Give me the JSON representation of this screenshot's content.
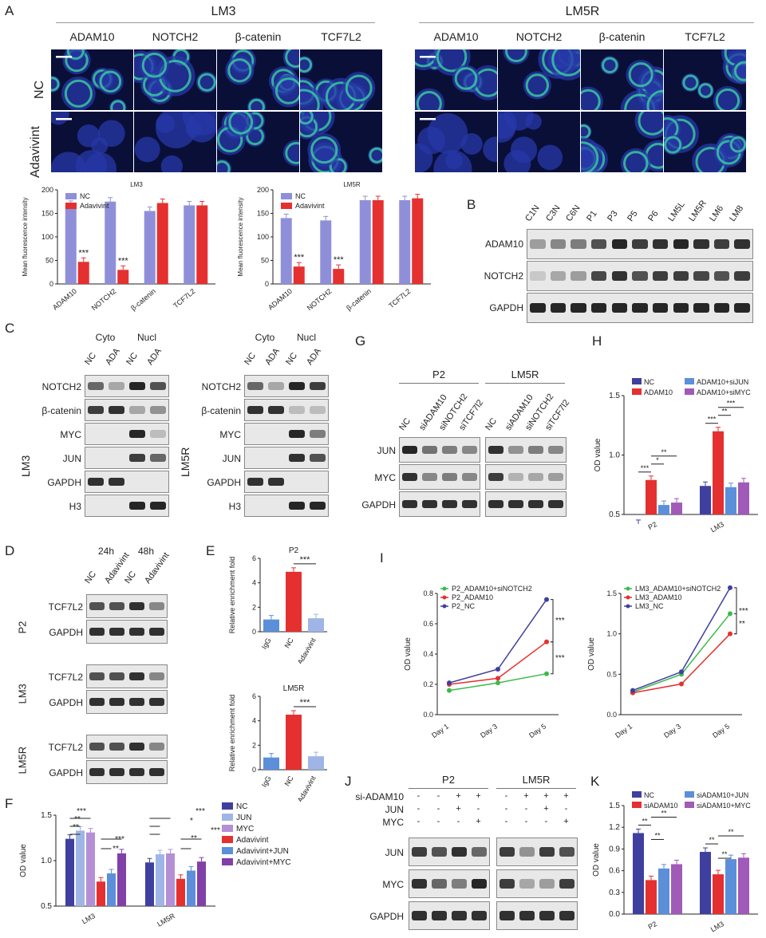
{
  "panels": {
    "A": "A",
    "B": "B",
    "C": "C",
    "D": "D",
    "E": "E",
    "F": "F",
    "G": "G",
    "H": "H",
    "I": "I",
    "J": "J",
    "K": "K"
  },
  "panel_a": {
    "group_left": "LM3",
    "group_right": "LM5R",
    "markers": [
      "ADAM10",
      "NOTCH2",
      "β-catenin",
      "TCF7L2"
    ],
    "rows": [
      "NC",
      "Adavivint"
    ]
  },
  "colors": {
    "nc": "#8f8fd9",
    "adavivint": "#e53030",
    "dark_blue": "#3f3f9f",
    "light_blue": "#9fb5e6",
    "purple": "#a05ab8",
    "mid_blue": "#5b8fd9",
    "green": "#3cba4a"
  },
  "panel_b": {
    "lanes": [
      "C1N",
      "C3N",
      "C6N",
      "P1",
      "P3",
      "P5",
      "P6",
      "LM5L",
      "LM5R",
      "LM6",
      "LM8"
    ],
    "rows": [
      "ADAM10",
      "NOTCH2",
      "GAPDH"
    ]
  },
  "panel_c": {
    "left_cell": "LM3",
    "right_cell": "LM5R",
    "fractions": [
      "Cyto",
      "Nucl"
    ],
    "lanes": [
      "NC",
      "ADA",
      "NC",
      "ADA"
    ],
    "rows": [
      "NOTCH2",
      "β-catenin",
      "MYC",
      "JUN",
      "GAPDH",
      "H3"
    ]
  },
  "panel_d": {
    "times": [
      "24h",
      "48h"
    ],
    "lanes": [
      "NC",
      "Adavivint",
      "NC",
      "Adavivint"
    ],
    "groups": [
      {
        "cell": "P2",
        "rows": [
          "TCF7L2",
          "GAPDH"
        ]
      },
      {
        "cell": "LM3",
        "rows": [
          "TCF7L2",
          "GAPDH"
        ]
      },
      {
        "cell": "LM5R",
        "rows": [
          "TCF7L2",
          "GAPDH"
        ]
      }
    ]
  },
  "panel_g": {
    "groups": [
      "P2",
      "LM5R"
    ],
    "lanes": [
      "NC",
      "siADAM10",
      "siNOTCH2",
      "siTCF7l2",
      "NC",
      "siADAM10",
      "siNOTCH2",
      "siTCF7l2"
    ],
    "rows": [
      "JUN",
      "MYC",
      "GAPDH"
    ]
  },
  "panel_j": {
    "groups": [
      "P2",
      "LM5R"
    ],
    "conditions": [
      {
        "name": "si-ADAM10",
        "marks": [
          "-",
          "-",
          "+",
          "+",
          "-",
          "+",
          "+",
          "+"
        ]
      },
      {
        "name": "JUN",
        "marks": [
          "-",
          "-",
          "+",
          "-",
          "-",
          "-",
          "+",
          "-"
        ]
      },
      {
        "name": "MYC",
        "marks": [
          "-",
          "-",
          "-",
          "+",
          "-",
          "-",
          "-",
          "+"
        ]
      }
    ],
    "rows": [
      "JUN",
      "MYC",
      "GAPDH"
    ]
  },
  "chart_data": [
    {
      "id": "A-LM3",
      "type": "bar",
      "title": "LM3",
      "ylabel": "Mean fluorescence intensity",
      "ylim": [
        0,
        200
      ],
      "yticks": [
        0,
        50,
        100,
        150,
        200
      ],
      "categories": [
        "ADAM10",
        "NOTCH2",
        "β-catenin",
        "TCF7L2"
      ],
      "series": [
        {
          "name": "NC",
          "values": [
            168,
            175,
            155,
            167
          ]
        },
        {
          "name": "Adavivint",
          "values": [
            47,
            30,
            172,
            167
          ]
        }
      ],
      "annotations": [
        "***",
        "***"
      ]
    },
    {
      "id": "A-LM5R",
      "type": "bar",
      "title": "LM5R",
      "ylabel": "Mean fluorescence intensity",
      "ylim": [
        0,
        200
      ],
      "yticks": [
        0,
        50,
        100,
        150,
        200
      ],
      "categories": [
        "ADAM10",
        "NOTCH2",
        "β-catenin",
        "TCF7L2"
      ],
      "series": [
        {
          "name": "NC",
          "values": [
            140,
            135,
            178,
            178
          ]
        },
        {
          "name": "Adavivint",
          "values": [
            37,
            32,
            178,
            182
          ]
        }
      ],
      "annotations": [
        "***",
        "***"
      ]
    },
    {
      "id": "E-P2",
      "type": "bar",
      "title": "P2",
      "ylabel": "Relative enrichment fold",
      "ylim": [
        0,
        6
      ],
      "yticks": [
        0,
        2,
        4,
        6
      ],
      "categories": [
        "IgG",
        "NC",
        "Adavivint"
      ],
      "values": [
        1.0,
        4.9,
        1.1
      ],
      "annotations": [
        "***"
      ]
    },
    {
      "id": "E-LM5R",
      "type": "bar",
      "title": "LM5R",
      "ylabel": "Relative enrichment fold",
      "ylim": [
        0,
        6
      ],
      "yticks": [
        0,
        2,
        4,
        6
      ],
      "categories": [
        "IgG",
        "NC",
        "Adavivint"
      ],
      "values": [
        1.0,
        4.5,
        1.1
      ],
      "annotations": [
        "***"
      ]
    },
    {
      "id": "F",
      "type": "bar",
      "ylabel": "OD value",
      "ylim": [
        0.5,
        1.5
      ],
      "yticks": [
        0.5,
        1.0,
        1.5
      ],
      "categories": [
        "LM3",
        "LM5R"
      ],
      "series": [
        {
          "name": "NC",
          "values": [
            1.24,
            0.98
          ]
        },
        {
          "name": "JUN",
          "values": [
            1.33,
            1.07
          ]
        },
        {
          "name": "MYC",
          "values": [
            1.31,
            1.08
          ]
        },
        {
          "name": "Adavivint",
          "values": [
            0.77,
            0.8
          ]
        },
        {
          "name": "Adavivint+JUN",
          "values": [
            0.86,
            0.89
          ]
        },
        {
          "name": "Adavivint+MYC",
          "values": [
            1.08,
            0.99
          ]
        }
      ],
      "annotations": [
        "***",
        "**",
        "**",
        "***",
        "**",
        "***",
        "*",
        "**",
        "***"
      ]
    },
    {
      "id": "H",
      "type": "bar",
      "ylabel": "OD value",
      "ylim": [
        0.5,
        1.5
      ],
      "yticks": [
        0.5,
        1.0,
        1.5
      ],
      "categories": [
        "P2",
        "LM3"
      ],
      "series": [
        {
          "name": "NC",
          "values": [
            0.42,
            0.74
          ]
        },
        {
          "name": "ADAM10",
          "values": [
            0.79,
            1.2
          ]
        },
        {
          "name": "ADAM10+siJUN",
          "values": [
            0.58,
            0.73
          ]
        },
        {
          "name": "ADAM10+siMYC",
          "values": [
            0.6,
            0.77
          ]
        }
      ],
      "annotations": [
        "***",
        "*",
        "**",
        "***",
        "**",
        "***"
      ]
    },
    {
      "id": "I-P2",
      "type": "line",
      "ylabel": "OD value",
      "ylim": [
        0,
        0.8
      ],
      "yticks": [
        0.0,
        0.2,
        0.4,
        0.6,
        0.8
      ],
      "x": [
        "Day 1",
        "Day 3",
        "Day 5"
      ],
      "series": [
        {
          "name": "P2_ADAM10+siNOTCH2",
          "values": [
            0.16,
            0.21,
            0.27
          ]
        },
        {
          "name": "P2_ADAM10",
          "values": [
            0.2,
            0.24,
            0.48
          ]
        },
        {
          "name": "P2_NC",
          "values": [
            0.21,
            0.3,
            0.76
          ]
        }
      ],
      "annotations": [
        "***",
        "***"
      ]
    },
    {
      "id": "I-LM3",
      "type": "line",
      "ylabel": "OD value",
      "ylim": [
        0,
        1.5
      ],
      "yticks": [
        0.0,
        0.5,
        1.0,
        1.5
      ],
      "x": [
        "Day 1",
        "Day 3",
        "Day 5"
      ],
      "series": [
        {
          "name": "LM3_ADAM10+siNOTCH2",
          "values": [
            0.28,
            0.5,
            1.25
          ]
        },
        {
          "name": "LM3_ADAM10",
          "values": [
            0.27,
            0.38,
            1.0
          ]
        },
        {
          "name": "LM3_NC",
          "values": [
            0.3,
            0.53,
            1.57
          ]
        }
      ],
      "annotations": [
        "***",
        "**"
      ]
    },
    {
      "id": "K",
      "type": "bar",
      "ylabel": "OD value",
      "ylim": [
        0,
        1.5
      ],
      "yticks": [
        0.0,
        0.3,
        0.6,
        0.9,
        1.2,
        1.5
      ],
      "categories": [
        "P2",
        "LM3"
      ],
      "series": [
        {
          "name": "NC",
          "values": [
            1.12,
            0.86
          ]
        },
        {
          "name": "siADAM10",
          "values": [
            0.47,
            0.55
          ]
        },
        {
          "name": "siADAM10+JUN",
          "values": [
            0.63,
            0.76
          ]
        },
        {
          "name": "siADAM10+MYC",
          "values": [
            0.69,
            0.78
          ]
        }
      ],
      "annotations": [
        "**",
        "**",
        "**",
        "**",
        "**",
        "**"
      ]
    }
  ]
}
